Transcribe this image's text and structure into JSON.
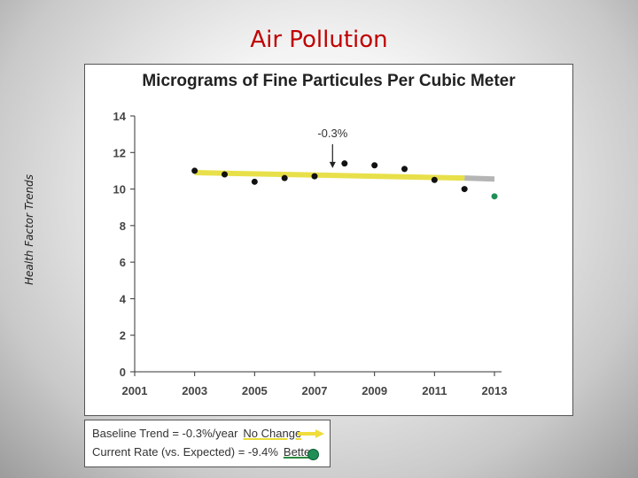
{
  "slide": {
    "title": "Air Pollution",
    "side_label": "Health Factor Trends"
  },
  "chart_data": {
    "type": "scatter",
    "title": "Micrograms of Fine Particules Per Cubic Meter",
    "x_ticks": [
      2001,
      2003,
      2005,
      2007,
      2009,
      2011,
      2013
    ],
    "y_ticks": [
      0,
      2,
      4,
      6,
      8,
      10,
      12,
      14
    ],
    "xlim": [
      2001,
      2013
    ],
    "ylim": [
      0,
      14
    ],
    "series": [
      {
        "x": [
          2003,
          2004,
          2005,
          2006,
          2007,
          2008,
          2009,
          2010,
          2011,
          2012
        ],
        "y": [
          11.0,
          10.8,
          10.4,
          10.6,
          10.7,
          11.4,
          11.3,
          11.1,
          10.5,
          10.0
        ]
      }
    ],
    "baseline_trend": {
      "x": [
        2003,
        2012
      ],
      "y": [
        10.9,
        10.6
      ],
      "color": "#e8e04a"
    },
    "trend_extension": {
      "x": [
        2012,
        2013
      ],
      "y": [
        10.6,
        10.55
      ],
      "color": "#b5b5b5"
    },
    "current_point": {
      "x": 2013,
      "y": 9.6,
      "color": "#1f8f55"
    },
    "annotation": {
      "text": "-0.3%",
      "x": 2007.6,
      "y": 11.1
    }
  },
  "legend": {
    "baseline": {
      "label": "Baseline Trend = -0.3%/year",
      "status": "No Change",
      "arrow_color": "#f0dc3c"
    },
    "current": {
      "label": "Current Rate (vs. Expected) = -9.4%",
      "status": "Better",
      "dot_color": "#1f8f55"
    }
  }
}
